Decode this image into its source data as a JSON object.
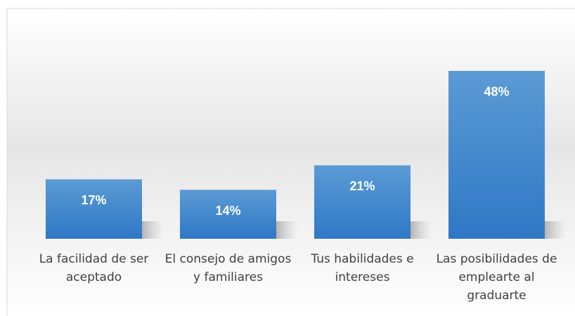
{
  "chart_data": {
    "type": "bar",
    "categories": [
      "La facilidad de ser aceptado",
      "El consejo de amigos y familiares",
      "Tus habilidades e intereses",
      "Las posibilidades de emplearte al graduarte"
    ],
    "values": [
      17,
      14,
      21,
      48
    ],
    "value_labels": [
      "17%",
      "14%",
      "21%",
      "48%"
    ],
    "color": "#5b9bd5"
  }
}
